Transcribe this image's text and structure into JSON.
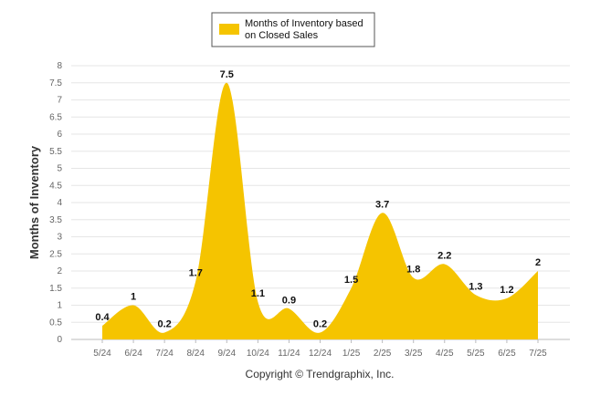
{
  "chart_data": {
    "type": "area",
    "categories": [
      "5/24",
      "6/24",
      "7/24",
      "8/24",
      "9/24",
      "10/24",
      "11/24",
      "12/24",
      "1/25",
      "2/25",
      "3/25",
      "4/25",
      "5/25",
      "6/25",
      "7/25"
    ],
    "series": [
      {
        "name": "Months of Inventory based on Closed Sales",
        "values": [
          0.4,
          1,
          0.2,
          1.7,
          7.5,
          1.1,
          0.9,
          0.2,
          1.5,
          3.7,
          1.8,
          2.2,
          1.3,
          1.2,
          2
        ]
      }
    ],
    "data_labels": [
      "0.4",
      "1",
      "0.2",
      "1.7",
      "7.5",
      "1.1",
      "0.9",
      "0.2",
      "1.5",
      "3.7",
      "1.8",
      "2.2",
      "1.3",
      "1.2",
      "2"
    ],
    "ylabel": "Months of Inventory",
    "xlabel": "",
    "ylim": [
      0,
      8
    ],
    "yticks": [
      "0",
      "0.5",
      "1",
      "1.5",
      "2",
      "2.5",
      "3",
      "3.5",
      "4",
      "4.5",
      "5",
      "5.5",
      "6",
      "6.5",
      "7",
      "7.5",
      "8"
    ],
    "grid": true,
    "legend": "top-center",
    "color": "#f5c400",
    "legend_lines": [
      "Months of Inventory based",
      "on Closed Sales"
    ]
  },
  "footer": {
    "copyright": "Copyright © Trendgraphix, Inc."
  }
}
